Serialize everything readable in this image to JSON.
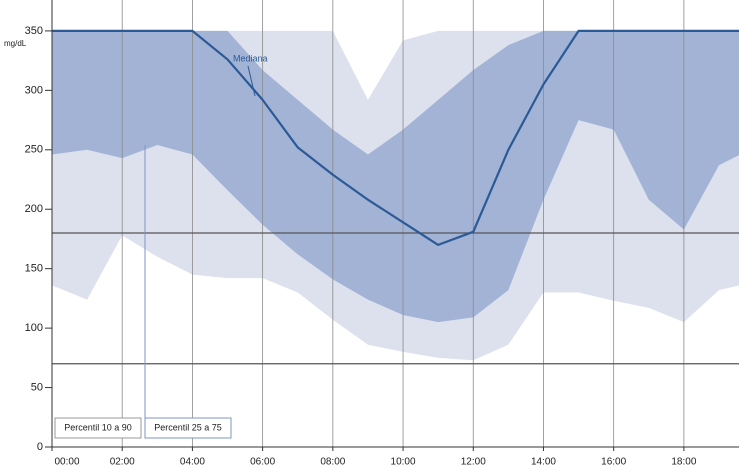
{
  "chart_data": {
    "type": "band",
    "y_unit": "mg/dL",
    "x": [
      0,
      1,
      2,
      3,
      4,
      5,
      6,
      7,
      8,
      9,
      10,
      11,
      12,
      13,
      14,
      15,
      16,
      17,
      18,
      19,
      19.6
    ],
    "xlim": [
      0,
      19.57
    ],
    "xticks": [
      {
        "value": 0,
        "label": "00:00"
      },
      {
        "value": 2,
        "label": "02:00"
      },
      {
        "value": 4,
        "label": "04:00"
      },
      {
        "value": 6,
        "label": "06:00"
      },
      {
        "value": 8,
        "label": "08:00"
      },
      {
        "value": 10,
        "label": "10:00"
      },
      {
        "value": 12,
        "label": "12:00"
      },
      {
        "value": 14,
        "label": "14:00"
      },
      {
        "value": 16,
        "label": "16:00"
      },
      {
        "value": 18,
        "label": "18:00"
      }
    ],
    "ylim": [
      0,
      376
    ],
    "yticks": [
      0,
      50,
      100,
      150,
      200,
      250,
      300,
      350
    ],
    "hlines": [
      180,
      70
    ],
    "grid": true,
    "series": [
      {
        "name": "Percentil 10 a 90",
        "color": "#dde1ee",
        "low": [
          136,
          124,
          178,
          160,
          145,
          142,
          142,
          130,
          107,
          86,
          80,
          75,
          73,
          86,
          130,
          130,
          123,
          117,
          105,
          132,
          136
        ],
        "high": [
          350,
          350,
          350,
          350,
          350,
          350,
          350,
          350,
          350,
          292,
          342,
          350,
          350,
          350,
          350,
          350,
          350,
          350,
          350,
          350,
          350
        ]
      },
      {
        "name": "Percentil 25 a 75",
        "color": "#a3b3d6",
        "low": [
          246,
          250,
          243,
          254,
          246,
          216,
          187,
          162,
          141,
          124,
          111,
          105,
          109,
          132,
          208,
          275,
          267,
          208,
          183,
          237,
          246
        ],
        "high": [
          350,
          350,
          350,
          350,
          350,
          350,
          317,
          292,
          267,
          246,
          267,
          292,
          317,
          338,
          350,
          350,
          350,
          350,
          350,
          350,
          350
        ]
      },
      {
        "name": "Mediana",
        "color": "#2b5a96",
        "values": [
          350,
          350,
          350,
          350,
          350,
          326,
          292,
          252,
          229,
          208,
          189,
          170,
          181,
          250,
          305,
          350,
          350,
          350,
          350,
          350,
          350
        ]
      }
    ]
  }
}
